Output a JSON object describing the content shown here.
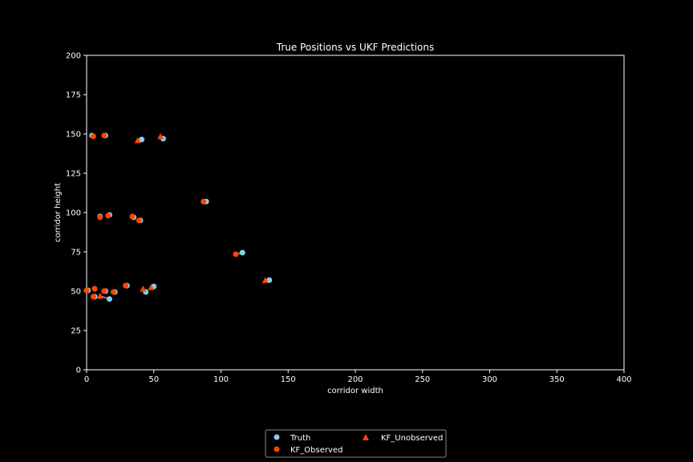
{
  "chart_data": {
    "type": "scatter",
    "title": "True Positions vs UKF Predictions",
    "xlabel": "corridor width",
    "ylabel": "corridor height",
    "xlim": [
      0,
      400
    ],
    "ylim": [
      0,
      200
    ],
    "xticks": [
      "0",
      "50",
      "100",
      "150",
      "200",
      "250",
      "300",
      "350",
      "400"
    ],
    "yticks": [
      "0",
      "25",
      "50",
      "75",
      "100",
      "125",
      "150",
      "175",
      "200"
    ],
    "grid": false,
    "legend_placement": "bottom-center",
    "colors": {
      "background": "#000000",
      "truth": "#87ceeb",
      "observed": "#ff4500",
      "unobserved": "#ff4500",
      "link": "#ffffff",
      "axes": "#ffffff"
    },
    "series": [
      {
        "name": "Truth",
        "marker": "circle",
        "x": [
          4,
          14,
          41,
          57,
          89,
          116,
          136,
          10,
          17,
          35,
          40,
          6,
          14,
          21,
          30,
          50,
          44,
          17,
          1,
          6
        ],
        "y": [
          149,
          149,
          146.5,
          147,
          107,
          74.5,
          57,
          97.5,
          98.5,
          97,
          95,
          51.5,
          50,
          49.5,
          53.5,
          53,
          49.5,
          45,
          50.5,
          46.5
        ]
      },
      {
        "name": "KF_Observed",
        "marker": "circle",
        "x": [
          5,
          13,
          87,
          111,
          10,
          16,
          34,
          39,
          6,
          13,
          20,
          29,
          0,
          5
        ],
        "y": [
          148.5,
          149,
          107,
          73.5,
          97,
          98,
          97.5,
          95,
          51.5,
          50,
          49.5,
          53.5,
          50.5,
          46.5
        ]
      },
      {
        "name": "KF_Unobserved",
        "marker": "triangle",
        "x": [
          38,
          55,
          133,
          42,
          48,
          10
        ],
        "y": [
          146,
          148.5,
          57,
          51.5,
          52.5,
          47
        ]
      }
    ],
    "links": [
      [
        [
          41,
          146.5
        ],
        [
          38,
          146
        ]
      ],
      [
        [
          57,
          147
        ],
        [
          55,
          148.5
        ]
      ],
      [
        [
          116,
          74.5
        ],
        [
          111,
          73.5
        ]
      ],
      [
        [
          136,
          57
        ],
        [
          133,
          57
        ]
      ],
      [
        [
          89,
          107
        ],
        [
          87,
          107
        ]
      ],
      [
        [
          44,
          49.5
        ],
        [
          42,
          51.5
        ]
      ],
      [
        [
          50,
          53
        ],
        [
          48,
          52.5
        ]
      ],
      [
        [
          17,
          45
        ],
        [
          10,
          47
        ]
      ]
    ]
  }
}
